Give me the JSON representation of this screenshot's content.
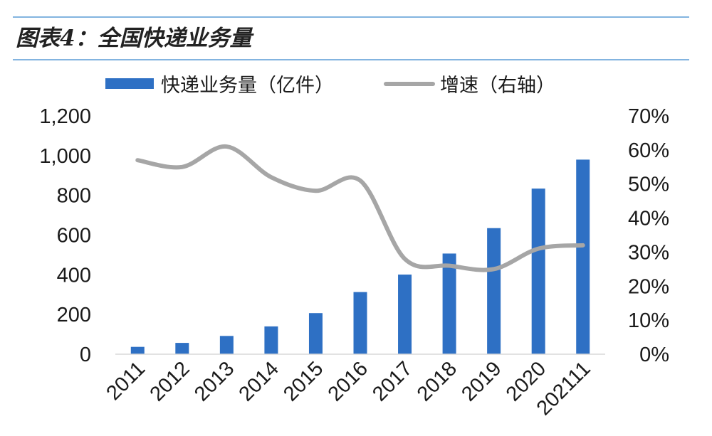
{
  "header": {
    "title": "图表4：全国快递业务量"
  },
  "colors": {
    "rule": "#5a9bd5",
    "bar": "#2e70c4",
    "line": "#a6a6a6"
  },
  "chart_data": {
    "type": "bar",
    "categories": [
      "2011",
      "2012",
      "2013",
      "2014",
      "2015",
      "2016",
      "2017",
      "2018",
      "2019",
      "2020",
      "202111"
    ],
    "series": [
      {
        "name": "快递业务量（亿件）",
        "type": "bar",
        "axis": "left",
        "values": [
          37,
          57,
          92,
          140,
          207,
          313,
          401,
          507,
          635,
          834,
          980
        ]
      },
      {
        "name": "增速（右轴）",
        "type": "line",
        "axis": "right",
        "values": [
          0.57,
          0.55,
          0.61,
          0.52,
          0.48,
          0.51,
          0.28,
          0.26,
          0.25,
          0.31,
          0.32
        ]
      }
    ],
    "left_axis": {
      "ylim": [
        0,
        1200
      ],
      "ticks": [
        "1,200",
        "1,000",
        "800",
        "600",
        "400",
        "200",
        "0"
      ]
    },
    "right_axis": {
      "ylim": [
        0,
        0.7
      ],
      "ticks": [
        "70%",
        "60%",
        "50%",
        "40%",
        "30%",
        "20%",
        "10%",
        "0%"
      ]
    },
    "legend_position": "top",
    "grid": false
  }
}
